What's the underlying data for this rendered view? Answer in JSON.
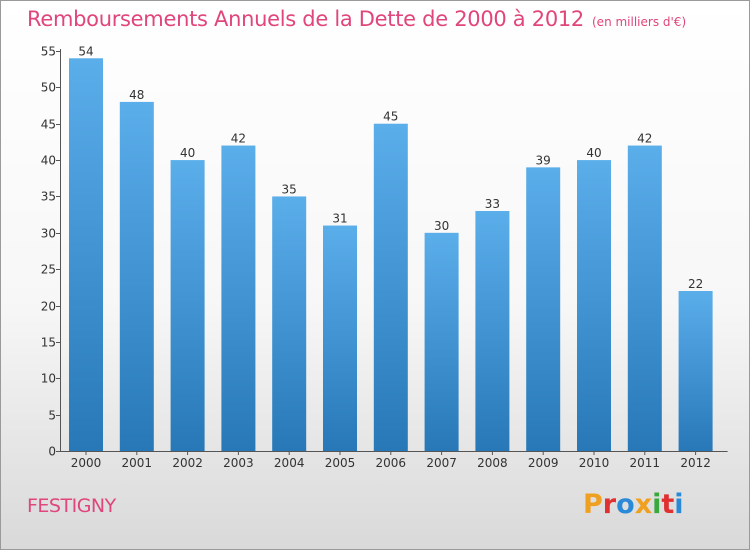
{
  "header": {
    "title": "Remboursements Annuels de la Dette de 2000 à 2012",
    "unit": "(en milliers d'€)"
  },
  "footer": {
    "commune": "FESTIGNY",
    "logo_text": "Proxiti"
  },
  "colors": {
    "title": "#e0457b",
    "bar_top": "#5aaeea",
    "bar_bottom": "#2878b8",
    "logo_letters": [
      "#f0a020",
      "#e03030",
      "#2a8ad8",
      "#f0a020",
      "#3aa83a",
      "#e03030",
      "#2a8ad8"
    ]
  },
  "chart_data": {
    "type": "bar",
    "categories": [
      "2000",
      "2001",
      "2002",
      "2003",
      "2004",
      "2005",
      "2006",
      "2007",
      "2008",
      "2009",
      "2010",
      "2011",
      "2012"
    ],
    "values": [
      54,
      48,
      40,
      42,
      35,
      31,
      45,
      30,
      33,
      39,
      40,
      42,
      22
    ],
    "ylim": [
      0,
      55
    ],
    "yticks": [
      0,
      5,
      10,
      15,
      20,
      25,
      30,
      35,
      40,
      45,
      50,
      55
    ],
    "grid": false,
    "data_labels": true
  }
}
